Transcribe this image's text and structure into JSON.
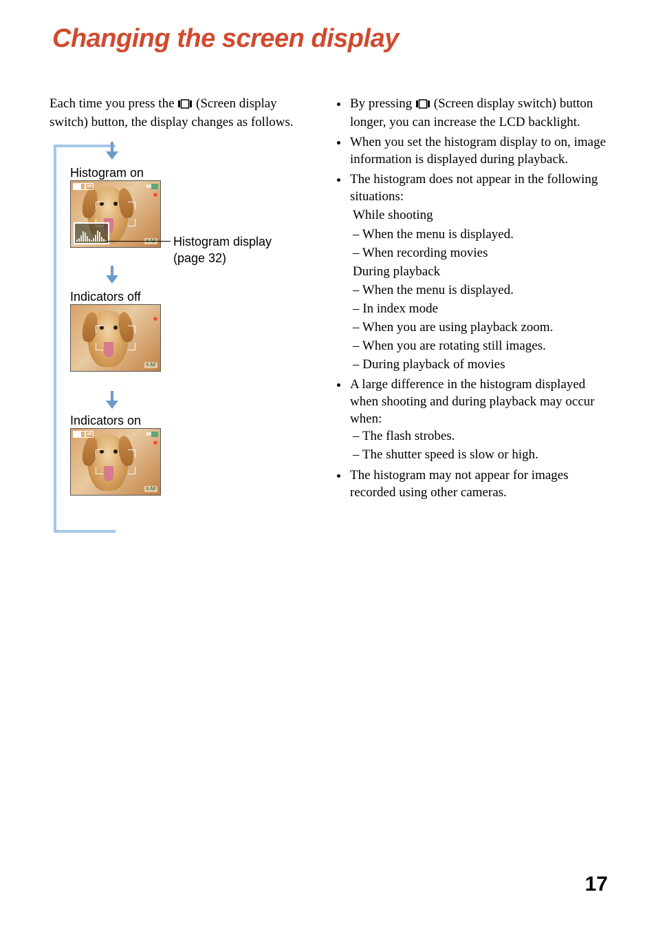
{
  "title": "Changing the screen display",
  "intro": {
    "part1": "Each time you press the ",
    "part2": " (Screen display switch) button, the display changes as follows."
  },
  "cycle": {
    "labels": {
      "histogram_on": "Histogram on",
      "indicators_off": "Indicators off",
      "indicators_on": "Indicators on"
    },
    "annot": {
      "line1": "Histogram display",
      "line2": "(page 32)"
    },
    "overlay": {
      "shots": "96",
      "saf": "S AF",
      "size_label": "2M"
    },
    "arrow_color": "#6b9cc9",
    "bar_color": "#a6c7e8",
    "hist_bars": [
      3,
      5,
      9,
      14,
      12,
      8,
      4,
      2,
      5,
      10,
      15,
      13,
      7,
      4,
      2
    ]
  },
  "right": {
    "b1": {
      "pre": "By pressing ",
      "post": " (Screen display switch) button longer, you can increase the LCD backlight."
    },
    "b2": "When you set the histogram display to on, image information is displayed during playback.",
    "b3_intro": "The histogram does not appear in the following situations:",
    "b3_shoot_head": "While shooting",
    "b3_shoot": [
      "When the menu is displayed.",
      "When recording movies"
    ],
    "b3_play_head": "During playback",
    "b3_play": [
      "When the menu is displayed.",
      "In index mode",
      "When you are using playback zoom.",
      "When you are rotating still images.",
      "During playback of movies"
    ],
    "b4_intro": "A large difference in the histogram displayed when shooting and during playback may occur when:",
    "b4": [
      "The flash strobes.",
      "The shutter speed is slow or high."
    ],
    "b5": "The histogram may not appear for images recorded using other cameras."
  },
  "page_number": "17"
}
